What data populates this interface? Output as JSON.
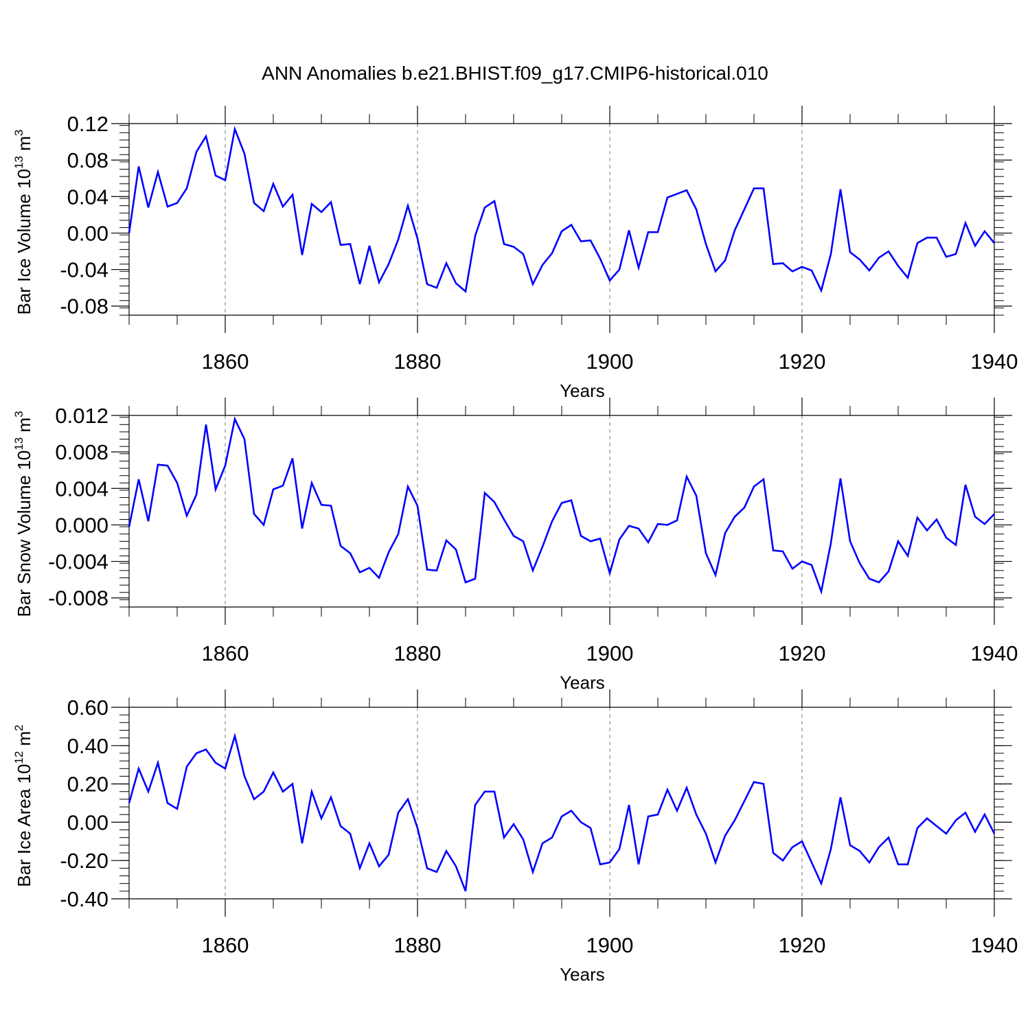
{
  "figure": {
    "title": "ANN Anomalies b.e21.BHIST.f09_g17.CMIP6-historical.010"
  },
  "colors": {
    "line": "#0000ff",
    "axis": "#000000",
    "grid": "#777777",
    "background": "#ffffff"
  },
  "chart_data": [
    {
      "type": "line",
      "title": "ANN Anomalies b.e21.BHIST.f09_g17.CMIP6-historical.010",
      "ylabel_main": "Bar Ice Volume 10",
      "ylabel_exp": "13",
      "ylabel_unit": " m",
      "ylabel_unit_exp": "3",
      "xlabel": "Years",
      "xlim": [
        1850,
        1940
      ],
      "ylim": [
        -0.09,
        0.12
      ],
      "yticks": [
        -0.08,
        -0.04,
        0.0,
        0.04,
        0.08,
        0.12
      ],
      "yticklabels": [
        "-0.08",
        "-0.04",
        "0.00",
        "0.04",
        "0.08",
        "0.12"
      ],
      "xticks": [
        1860,
        1880,
        1900,
        1920,
        1940
      ],
      "xticklabels": [
        "1860",
        "1880",
        "1900",
        "1920",
        "1940"
      ],
      "grid": "vertical dashed at major x ticks",
      "x": [
        1850,
        1851,
        1852,
        1853,
        1854,
        1855,
        1856,
        1857,
        1858,
        1859,
        1860,
        1861,
        1862,
        1863,
        1864,
        1865,
        1866,
        1867,
        1868,
        1869,
        1870,
        1871,
        1872,
        1873,
        1874,
        1875,
        1876,
        1877,
        1878,
        1879,
        1880,
        1881,
        1882,
        1883,
        1884,
        1885,
        1886,
        1887,
        1888,
        1889,
        1890,
        1891,
        1892,
        1893,
        1894,
        1895,
        1896,
        1897,
        1898,
        1899,
        1900,
        1901,
        1902,
        1903,
        1904,
        1905,
        1906,
        1907,
        1908,
        1909,
        1910,
        1911,
        1912,
        1913,
        1914,
        1915,
        1916,
        1917,
        1918,
        1919,
        1920,
        1921,
        1922,
        1923,
        1924,
        1925,
        1926,
        1927,
        1928,
        1929,
        1930,
        1931,
        1932,
        1933,
        1934,
        1935,
        1936,
        1937,
        1938,
        1939,
        1940
      ],
      "values": [
        0.0,
        0.073,
        0.028,
        0.067,
        0.029,
        0.033,
        0.049,
        0.089,
        0.106,
        0.063,
        0.058,
        0.114,
        0.087,
        0.033,
        0.024,
        0.054,
        0.029,
        0.042,
        -0.024,
        0.032,
        0.023,
        0.034,
        -0.013,
        -0.012,
        -0.056,
        -0.014,
        -0.054,
        -0.034,
        -0.007,
        0.03,
        -0.006,
        -0.056,
        -0.06,
        -0.033,
        -0.055,
        -0.064,
        -0.003,
        0.028,
        0.035,
        -0.012,
        -0.015,
        -0.023,
        -0.056,
        -0.035,
        -0.022,
        0.002,
        0.009,
        -0.009,
        -0.008,
        -0.028,
        -0.052,
        -0.04,
        0.003,
        -0.038,
        0.001,
        0.001,
        0.039,
        0.043,
        0.047,
        0.026,
        -0.012,
        -0.042,
        -0.03,
        0.003,
        0.026,
        0.049,
        0.049,
        -0.034,
        -0.033,
        -0.042,
        -0.037,
        -0.041,
        -0.063,
        -0.023,
        0.048,
        -0.021,
        -0.029,
        -0.041,
        -0.027,
        -0.02,
        -0.036,
        -0.049,
        -0.011,
        -0.005,
        -0.005,
        -0.026,
        -0.023,
        0.011,
        -0.014,
        0.002,
        -0.011
      ]
    },
    {
      "type": "line",
      "ylabel_main": "Bar Snow Volume 10",
      "ylabel_exp": "13",
      "ylabel_unit": " m",
      "ylabel_unit_exp": "3",
      "xlabel": "Years",
      "xlim": [
        1850,
        1940
      ],
      "ylim": [
        -0.009,
        0.012
      ],
      "yticks": [
        -0.008,
        -0.004,
        0.0,
        0.004,
        0.008,
        0.012
      ],
      "yticklabels": [
        "-0.008",
        "-0.004",
        "0.000",
        "0.004",
        "0.008",
        "0.012"
      ],
      "xticks": [
        1860,
        1880,
        1900,
        1920,
        1940
      ],
      "xticklabels": [
        "1860",
        "1880",
        "1900",
        "1920",
        "1940"
      ],
      "grid": "vertical dashed at major x ticks",
      "x": [
        1850,
        1851,
        1852,
        1853,
        1854,
        1855,
        1856,
        1857,
        1858,
        1859,
        1860,
        1861,
        1862,
        1863,
        1864,
        1865,
        1866,
        1867,
        1868,
        1869,
        1870,
        1871,
        1872,
        1873,
        1874,
        1875,
        1876,
        1877,
        1878,
        1879,
        1880,
        1881,
        1882,
        1883,
        1884,
        1885,
        1886,
        1887,
        1888,
        1889,
        1890,
        1891,
        1892,
        1893,
        1894,
        1895,
        1896,
        1897,
        1898,
        1899,
        1900,
        1901,
        1902,
        1903,
        1904,
        1905,
        1906,
        1907,
        1908,
        1909,
        1910,
        1911,
        1912,
        1913,
        1914,
        1915,
        1916,
        1917,
        1918,
        1919,
        1920,
        1921,
        1922,
        1923,
        1924,
        1925,
        1926,
        1927,
        1928,
        1929,
        1930,
        1931,
        1932,
        1933,
        1934,
        1935,
        1936,
        1937,
        1938,
        1939,
        1940
      ],
      "values": [
        -0.0002,
        0.005,
        0.0004,
        0.0066,
        0.0065,
        0.0046,
        0.001,
        0.0033,
        0.011,
        0.0039,
        0.0065,
        0.0116,
        0.0094,
        0.0012,
        0.0,
        0.0039,
        0.0043,
        0.0073,
        -0.0004,
        0.0046,
        0.0022,
        0.0021,
        -0.0023,
        -0.0031,
        -0.0052,
        -0.0047,
        -0.0058,
        -0.003,
        -0.001,
        0.0042,
        0.0021,
        -0.0049,
        -0.005,
        -0.0017,
        -0.0027,
        -0.0063,
        -0.0059,
        0.0035,
        0.0025,
        0.0006,
        -0.0012,
        -0.0018,
        -0.005,
        -0.0024,
        0.0004,
        0.0024,
        0.0027,
        -0.0012,
        -0.0018,
        -0.0015,
        -0.0053,
        -0.0016,
        -0.0001,
        -0.0004,
        -0.0019,
        0.0001,
        0.0,
        0.0005,
        0.0053,
        0.0032,
        -0.0031,
        -0.0055,
        -0.0009,
        0.0009,
        0.0019,
        0.0042,
        0.005,
        -0.0028,
        -0.0029,
        -0.0048,
        -0.004,
        -0.0044,
        -0.0073,
        -0.002,
        0.0051,
        -0.0018,
        -0.0042,
        -0.0059,
        -0.0063,
        -0.0051,
        -0.0018,
        -0.0034,
        0.0008,
        -0.0006,
        0.0006,
        -0.0014,
        -0.0022,
        0.0044,
        0.0009,
        0.0001,
        0.0012
      ]
    },
    {
      "type": "line",
      "ylabel_main": "Bar Ice Area 10",
      "ylabel_exp": "12",
      "ylabel_unit": " m",
      "ylabel_unit_exp": "2",
      "xlabel": "Years",
      "xlim": [
        1850,
        1940
      ],
      "ylim": [
        -0.4,
        0.6
      ],
      "yticks": [
        -0.4,
        -0.2,
        0.0,
        0.2,
        0.4,
        0.6
      ],
      "yticklabels": [
        "-0.40",
        "-0.20",
        "0.00",
        "0.20",
        "0.40",
        "0.60"
      ],
      "xticks": [
        1860,
        1880,
        1900,
        1920,
        1940
      ],
      "xticklabels": [
        "1860",
        "1880",
        "1900",
        "1920",
        "1940"
      ],
      "grid": "vertical dashed at major x ticks",
      "x": [
        1850,
        1851,
        1852,
        1853,
        1854,
        1855,
        1856,
        1857,
        1858,
        1859,
        1860,
        1861,
        1862,
        1863,
        1864,
        1865,
        1866,
        1867,
        1868,
        1869,
        1870,
        1871,
        1872,
        1873,
        1874,
        1875,
        1876,
        1877,
        1878,
        1879,
        1880,
        1881,
        1882,
        1883,
        1884,
        1885,
        1886,
        1887,
        1888,
        1889,
        1890,
        1891,
        1892,
        1893,
        1894,
        1895,
        1896,
        1897,
        1898,
        1899,
        1900,
        1901,
        1902,
        1903,
        1904,
        1905,
        1906,
        1907,
        1908,
        1909,
        1910,
        1911,
        1912,
        1913,
        1914,
        1915,
        1916,
        1917,
        1918,
        1919,
        1920,
        1921,
        1922,
        1923,
        1924,
        1925,
        1926,
        1927,
        1928,
        1929,
        1930,
        1931,
        1932,
        1933,
        1934,
        1935,
        1936,
        1937,
        1938,
        1939,
        1940
      ],
      "values": [
        0.1,
        0.28,
        0.16,
        0.31,
        0.1,
        0.07,
        0.29,
        0.36,
        0.38,
        0.31,
        0.28,
        0.45,
        0.24,
        0.12,
        0.16,
        0.26,
        0.16,
        0.2,
        -0.11,
        0.16,
        0.02,
        0.13,
        -0.02,
        -0.06,
        -0.24,
        -0.11,
        -0.23,
        -0.17,
        0.05,
        0.12,
        -0.03,
        -0.24,
        -0.26,
        -0.15,
        -0.23,
        -0.36,
        0.09,
        0.16,
        0.16,
        -0.08,
        -0.01,
        -0.09,
        -0.26,
        -0.11,
        -0.08,
        0.03,
        0.06,
        0.0,
        -0.03,
        -0.22,
        -0.21,
        -0.14,
        0.09,
        -0.22,
        0.03,
        0.04,
        0.17,
        0.06,
        0.18,
        0.04,
        -0.06,
        -0.21,
        -0.07,
        0.01,
        0.11,
        0.21,
        0.2,
        -0.16,
        -0.2,
        -0.13,
        -0.1,
        -0.21,
        -0.32,
        -0.14,
        0.13,
        -0.12,
        -0.15,
        -0.21,
        -0.13,
        -0.08,
        -0.22,
        -0.22,
        -0.03,
        0.02,
        -0.02,
        -0.06,
        0.01,
        0.05,
        -0.05,
        0.04,
        -0.06
      ]
    }
  ]
}
